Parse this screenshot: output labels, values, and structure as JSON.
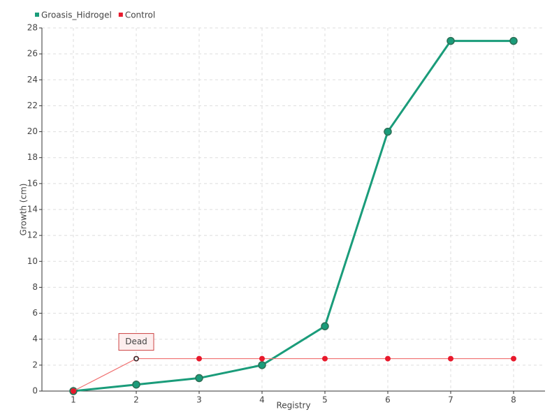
{
  "chart_data": {
    "type": "line",
    "x_label": "Registry",
    "y_label": "Growth (cm)",
    "x": [
      1,
      2,
      3,
      4,
      5,
      6,
      7,
      8
    ],
    "xlim": [
      0.5,
      8.5
    ],
    "xticks": [
      1,
      2,
      3,
      4,
      5,
      6,
      7,
      8
    ],
    "ylim": [
      0,
      28
    ],
    "yticks": [
      0,
      2,
      4,
      6,
      8,
      10,
      12,
      14,
      16,
      18,
      20,
      22,
      24,
      26,
      28
    ],
    "grid": true,
    "legend": "top-left",
    "series": [
      {
        "name": "Groasis_Hidrogel",
        "color": "#1a9c7a",
        "values": [
          0,
          0.5,
          1,
          2,
          5,
          20,
          27,
          27
        ]
      },
      {
        "name": "Control",
        "color": "#e8192c",
        "values": [
          0,
          2.5,
          2.5,
          2.5,
          2.5,
          2.5,
          2.5,
          2.5
        ]
      }
    ],
    "annotations": [
      {
        "text": "Dead",
        "x": 2,
        "y": 2.5
      }
    ]
  }
}
